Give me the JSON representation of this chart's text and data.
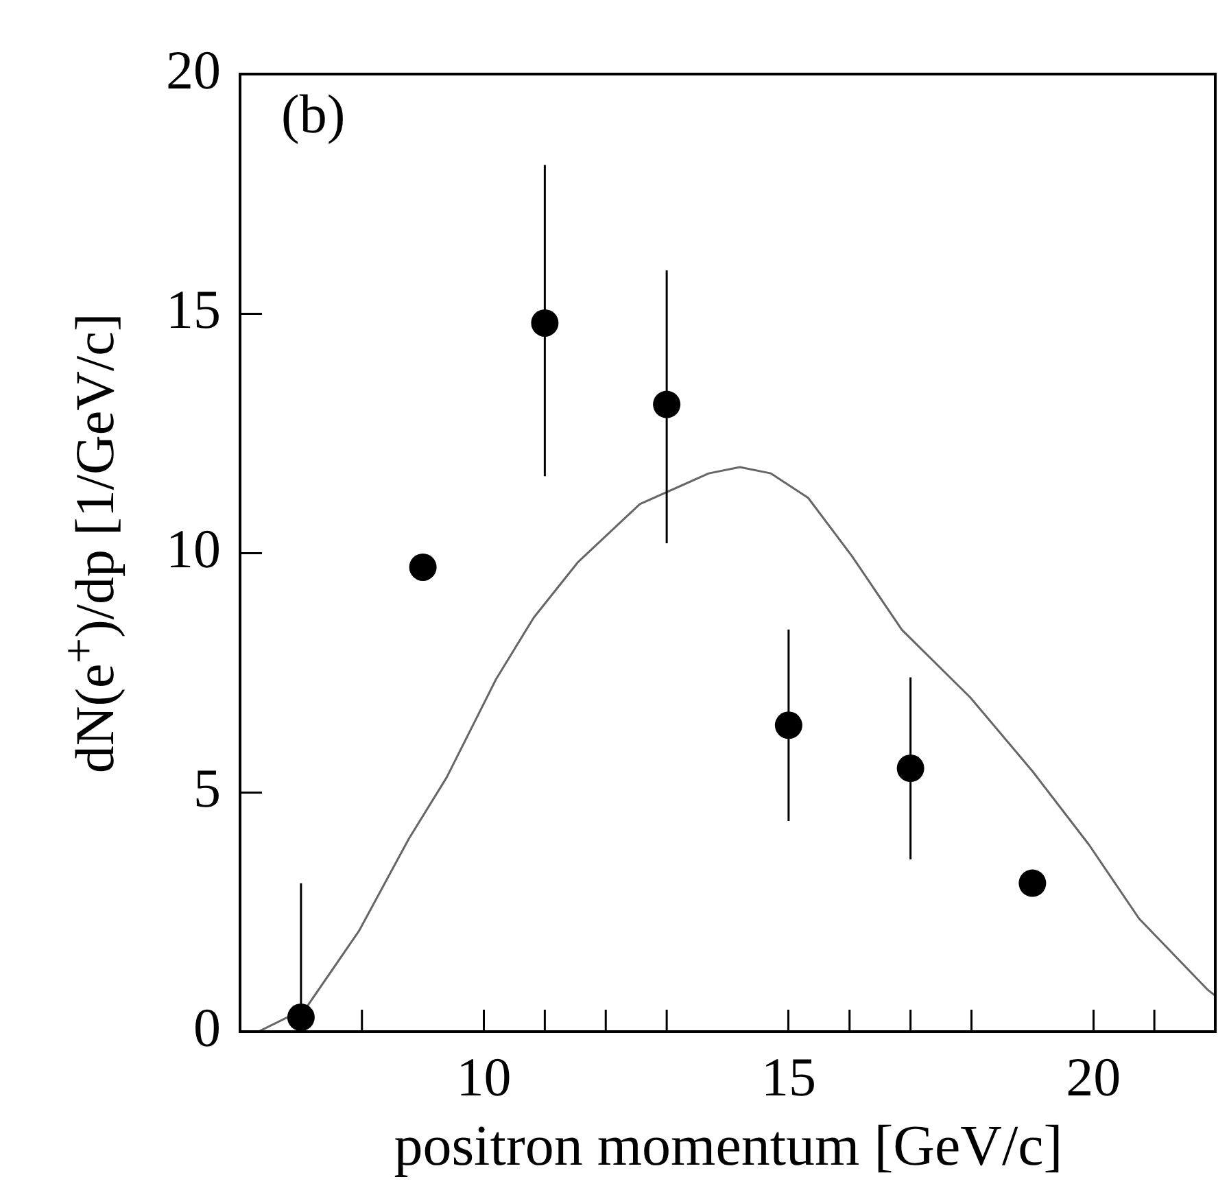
{
  "chart_data": {
    "type": "scatter",
    "xlabel": "positron momentum [GeV/c]",
    "ylabel": "dN(e$^{+}$)/dp  [1/GeV/c]",
    "annotations": [
      "(b)"
    ],
    "xlim": [
      6,
      22
    ],
    "xticks": [
      {
        "value": 8,
        "label": null
      },
      10,
      {
        "value": 11,
        "label": null
      },
      {
        "value": 12,
        "label": null
      },
      {
        "value": 13,
        "label": null
      },
      15,
      {
        "value": 16,
        "label": null
      },
      {
        "value": 17,
        "label": null
      },
      {
        "value": 18,
        "label": null
      },
      20,
      {
        "value": 21,
        "label": null
      }
    ],
    "ylim": [
      0,
      20
    ],
    "yticks": [
      0,
      5,
      10,
      15,
      20
    ],
    "series": [
      {
        "marker": "circle",
        "color": "#000000",
        "x": [
          7,
          9,
          11,
          13,
          15,
          17,
          19
        ],
        "values": [
          0.3,
          9.7,
          14.8,
          13.1,
          6.4,
          5.5,
          3.1
        ],
        "errors": [
          [
            0,
            3.1
          ],
          null,
          [
            11.6,
            18.1
          ],
          [
            10.2,
            15.9
          ],
          [
            4.4,
            8.4
          ],
          [
            3.6,
            7.4
          ],
          null
        ]
      },
      {
        "type": "line",
        "color": "#666666",
        "x": [
          6,
          6.3,
          7.08,
          7.95,
          8.77,
          9.39,
          10.2,
          10.82,
          11.54,
          12.56,
          13.69,
          14.2,
          14.71,
          15.32,
          16.04,
          16.86,
          17.98,
          19.0,
          19.93,
          20.75,
          21.87,
          22
        ],
        "values": [
          0,
          0,
          0.49,
          2.1,
          4.03,
          5.31,
          7.36,
          8.65,
          9.8,
          11.02,
          11.66,
          11.79,
          11.66,
          11.15,
          9.93,
          8.39,
          6.98,
          5.44,
          3.9,
          2.36,
          0.88,
          0.75
        ]
      }
    ]
  }
}
